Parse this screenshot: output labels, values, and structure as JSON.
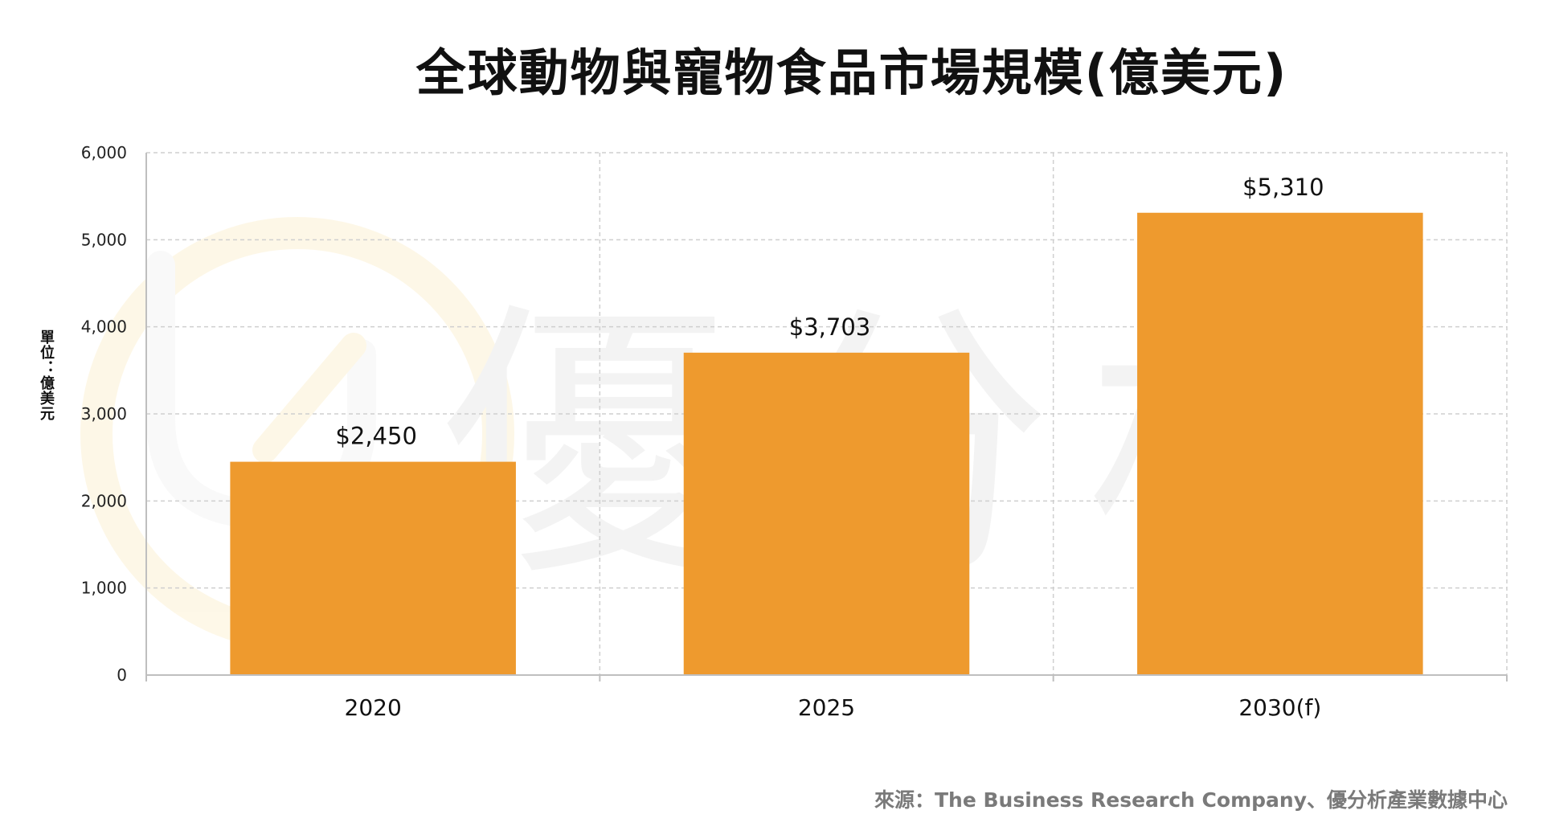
{
  "chart_data": {
    "type": "bar",
    "title": "全球動物與寵物食品市場規模(億美元)",
    "ylabel": "單位：億美元",
    "xlabel": "",
    "categories": [
      "2020",
      "2025",
      "2030(f)"
    ],
    "values": [
      2450,
      3703,
      5310
    ],
    "data_labels": [
      "$2,450",
      "$3,703",
      "$5,310"
    ],
    "ylim": [
      0,
      6000
    ],
    "y_ticks": [
      0,
      1000,
      2000,
      3000,
      4000,
      5000,
      6000
    ],
    "y_tick_labels": [
      "0",
      "1,000",
      "2,000",
      "3,000",
      "4,000",
      "5,000",
      "6,000"
    ],
    "grid": true,
    "bar_color": "#EE9A2E",
    "grid_color": "#cfcfcf",
    "axis_color": "#bfbfbf"
  },
  "source": "來源：The Business Research Company、優分析產業數據中心",
  "watermark": "優分析"
}
